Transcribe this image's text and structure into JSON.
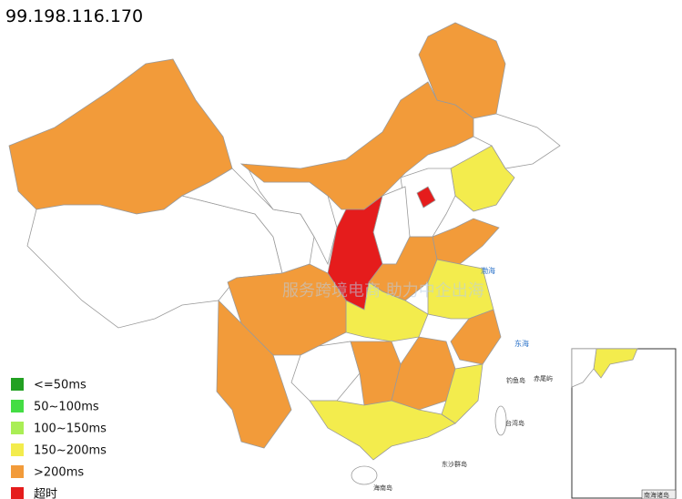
{
  "title": "99.198.116.170",
  "watermark": "服务跨境电商 助力中企出海",
  "labels": [
    "渤海",
    "东海",
    "钓鱼岛",
    "赤尾屿",
    "台湾岛",
    "东沙群岛",
    "海南岛",
    "南海诸岛"
  ],
  "legend": {
    "items": [
      {
        "label": "<=50ms",
        "color": "#22a022"
      },
      {
        "label": "50~100ms",
        "color": "#44dd44"
      },
      {
        "label": "100~150ms",
        "color": "#aaee55"
      },
      {
        "label": "150~200ms",
        "color": "#f3ec4d"
      },
      {
        "label": ">200ms",
        "color": "#f29b3a"
      },
      {
        "label": "超时",
        "color": "#e51c1c"
      }
    ]
  }
}
